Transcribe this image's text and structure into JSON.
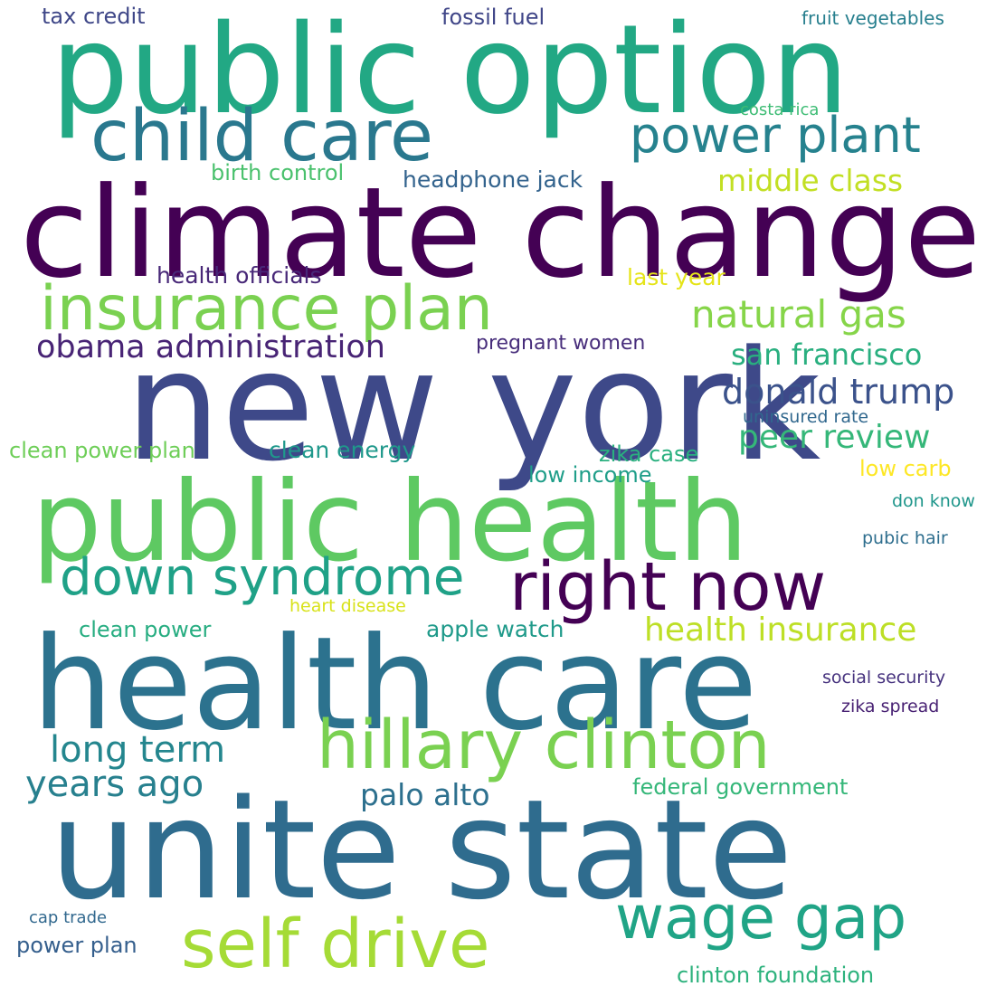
{
  "words": [
    {
      "text": "public option",
      "color": "#22a884"
    },
    {
      "text": "climate change",
      "color": "#440154"
    },
    {
      "text": "new york",
      "color": "#3e4989"
    },
    {
      "text": "public health",
      "color": "#5ec962"
    },
    {
      "text": "health care",
      "color": "#2c728e"
    },
    {
      "text": "unite state",
      "color": "#2f6c8e"
    },
    {
      "text": "child care",
      "color": "#2a788e"
    },
    {
      "text": "power plant",
      "color": "#26828e"
    },
    {
      "text": "insurance plan",
      "color": "#7ad151"
    },
    {
      "text": "right now",
      "color": "#440154"
    },
    {
      "text": "hillary clinton",
      "color": "#7ad151"
    },
    {
      "text": "self drive",
      "color": "#a5db36"
    },
    {
      "text": "wage gap",
      "color": "#20a486"
    },
    {
      "text": "down syndrome",
      "color": "#1fa187"
    },
    {
      "text": "natural gas",
      "color": "#86d549"
    },
    {
      "text": "obama administration",
      "color": "#482475"
    },
    {
      "text": "donald trump",
      "color": "#3b528b"
    },
    {
      "text": "health insurance",
      "color": "#bddf26"
    },
    {
      "text": "peer review",
      "color": "#35b779"
    },
    {
      "text": "san francisco",
      "color": "#29af7f"
    },
    {
      "text": "middle class",
      "color": "#c2df23"
    },
    {
      "text": "long term",
      "color": "#24868e"
    },
    {
      "text": "years ago",
      "color": "#27808e"
    },
    {
      "text": "palo alto",
      "color": "#2d708e"
    },
    {
      "text": "headphone jack",
      "color": "#33638d"
    },
    {
      "text": "birth control",
      "color": "#4ac16d"
    },
    {
      "text": "health officials",
      "color": "#482878"
    },
    {
      "text": "last year",
      "color": "#e5e419"
    },
    {
      "text": "pregnant women",
      "color": "#472d7b"
    },
    {
      "text": "clean energy",
      "color": "#1f988b"
    },
    {
      "text": "clean power plan",
      "color": "#6ece58"
    },
    {
      "text": "zika case",
      "color": "#2ab07f"
    },
    {
      "text": "low income",
      "color": "#1f9e89"
    },
    {
      "text": "low carb",
      "color": "#fde725"
    },
    {
      "text": "uninsured rate",
      "color": "#31688e"
    },
    {
      "text": "don know",
      "color": "#1f968b"
    },
    {
      "text": "pubic hair",
      "color": "#2e6e8e"
    },
    {
      "text": "heart disease",
      "color": "#d8e219"
    },
    {
      "text": "clean power",
      "color": "#27ad81"
    },
    {
      "text": "apple watch",
      "color": "#1f9a8a"
    },
    {
      "text": "social security",
      "color": "#46327e"
    },
    {
      "text": "zika spread",
      "color": "#482173"
    },
    {
      "text": "federal government",
      "color": "#35b779"
    },
    {
      "text": "tax credit",
      "color": "#3f4788"
    },
    {
      "text": "fossil fuel",
      "color": "#404688"
    },
    {
      "text": "fruit vegetables",
      "color": "#277f8e"
    },
    {
      "text": "costa rica",
      "color": "#3dbc74"
    },
    {
      "text": "cap trade",
      "color": "#31688e"
    },
    {
      "text": "power plan",
      "color": "#355f8d"
    },
    {
      "text": "clinton foundation",
      "color": "#2db27d"
    }
  ]
}
